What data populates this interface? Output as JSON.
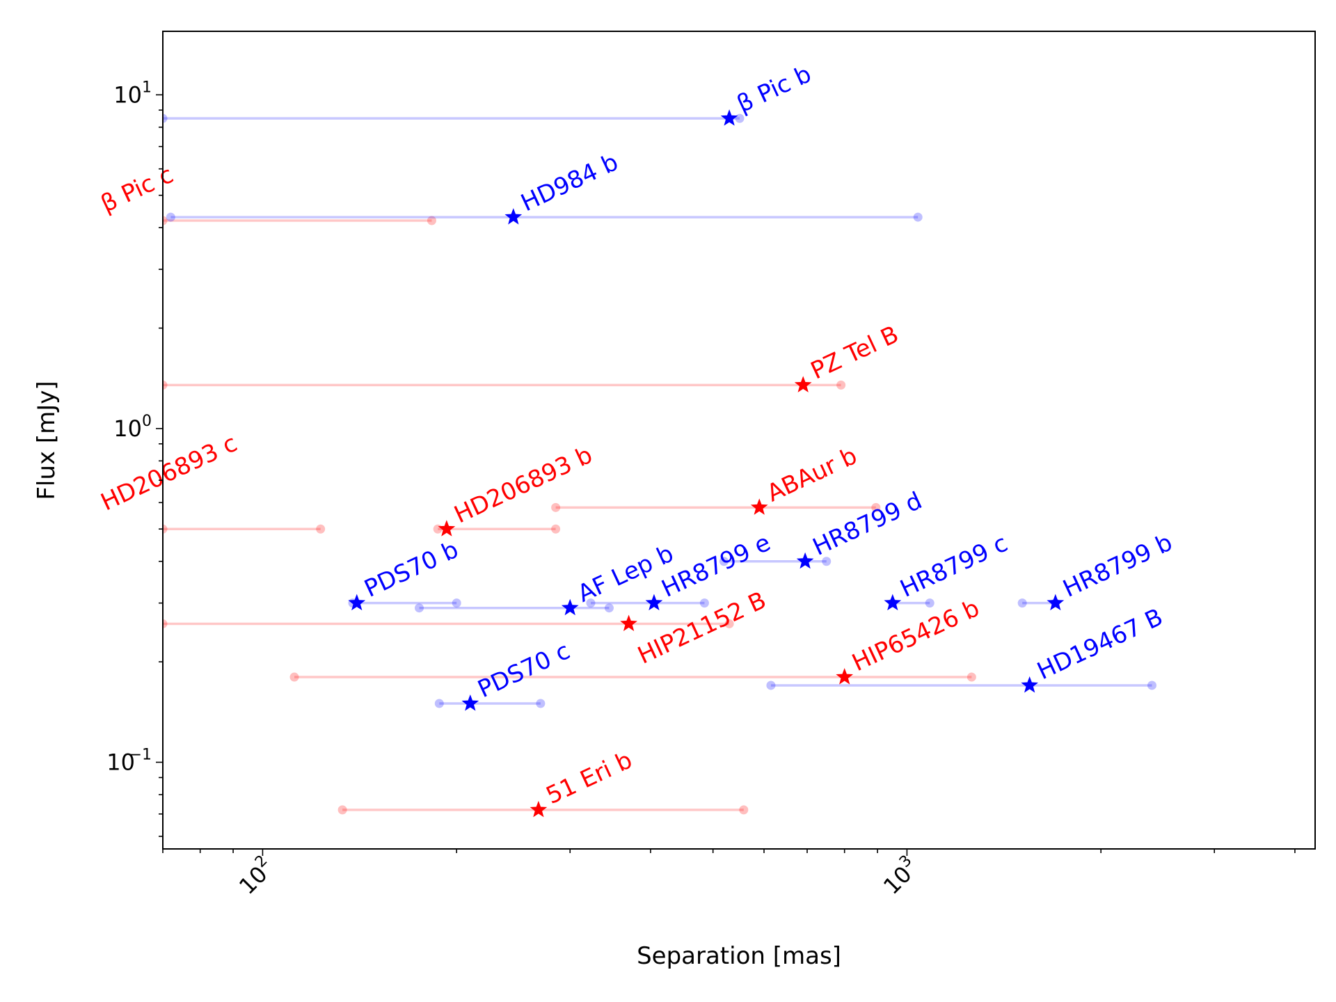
{
  "chart_data": {
    "type": "scatter",
    "title": "",
    "xlabel": "Separation [mas]",
    "ylabel": "Flux [mJy]",
    "xscale": "log",
    "yscale": "log",
    "xlim": [
      70,
      4300
    ],
    "ylim": [
      0.055,
      15.5
    ],
    "grid": false,
    "legend": "none",
    "x_ticks": [
      {
        "value": 100,
        "base": "10",
        "exp": "2"
      },
      {
        "value": 1000,
        "base": "10",
        "exp": "3"
      }
    ],
    "y_ticks": [
      {
        "value": 0.1,
        "base": "10",
        "exp": "−1"
      },
      {
        "value": 1,
        "base": "10",
        "exp": "0"
      },
      {
        "value": 10,
        "base": "10",
        "exp": "1"
      }
    ],
    "colors": {
      "blue": "#0000ff",
      "red": "#ff0000"
    },
    "points": [
      {
        "name": "β Pic b",
        "color": "blue",
        "x": 530,
        "y": 8.5,
        "range": [
          70,
          550
        ]
      },
      {
        "name": "β Pic c",
        "color": "red",
        "x": null,
        "y": 4.2,
        "range": [
          70,
          183
        ],
        "label_at": [
          70,
          4.7
        ]
      },
      {
        "name": "HD984 b",
        "color": "blue",
        "x": 245,
        "y": 4.3,
        "range": [
          72,
          1040
        ]
      },
      {
        "name": "PZ Tel B",
        "color": "red",
        "x": 690,
        "y": 1.35,
        "range": [
          70,
          790
        ]
      },
      {
        "name": "HD206893 c",
        "color": "red",
        "x": null,
        "y": 0.5,
        "range": [
          70,
          123
        ],
        "label_at": [
          70,
          0.6
        ]
      },
      {
        "name": "HD206893 b",
        "color": "red",
        "x": 193,
        "y": 0.5,
        "range": [
          187,
          285
        ]
      },
      {
        "name": "ABAur b",
        "color": "red",
        "x": 590,
        "y": 0.58,
        "range": [
          285,
          895
        ]
      },
      {
        "name": "HR8799 d",
        "color": "blue",
        "x": 695,
        "y": 0.4,
        "range": [
          520,
          750
        ]
      },
      {
        "name": "PDS70 b",
        "color": "blue",
        "x": 140,
        "y": 0.3,
        "range": [
          138,
          200
        ]
      },
      {
        "name": "AF Lep b",
        "color": "blue",
        "x": 300,
        "y": 0.29,
        "range": [
          175,
          345
        ]
      },
      {
        "name": "HR8799 e",
        "color": "blue",
        "x": 405,
        "y": 0.3,
        "range": [
          323,
          485
        ]
      },
      {
        "name": "HR8799 c",
        "color": "blue",
        "x": 950,
        "y": 0.3,
        "range": [
          950,
          1085
        ]
      },
      {
        "name": "HR8799 b",
        "color": "blue",
        "x": 1700,
        "y": 0.3,
        "range": [
          1510,
          1700
        ]
      },
      {
        "name": "HIP21152 B",
        "color": "red",
        "x": 370,
        "y": 0.26,
        "range": [
          70,
          530
        ],
        "label_below": true
      },
      {
        "name": "HIP65426 b",
        "color": "red",
        "x": 800,
        "y": 0.18,
        "range": [
          112,
          1260
        ]
      },
      {
        "name": "HD19467 B",
        "color": "blue",
        "x": 1550,
        "y": 0.17,
        "range": [
          615,
          2400
        ]
      },
      {
        "name": "PDS70 c",
        "color": "blue",
        "x": 210,
        "y": 0.15,
        "range": [
          188,
          270
        ]
      },
      {
        "name": "51 Eri b",
        "color": "red",
        "x": 268,
        "y": 0.072,
        "range": [
          133,
          558
        ]
      }
    ]
  }
}
